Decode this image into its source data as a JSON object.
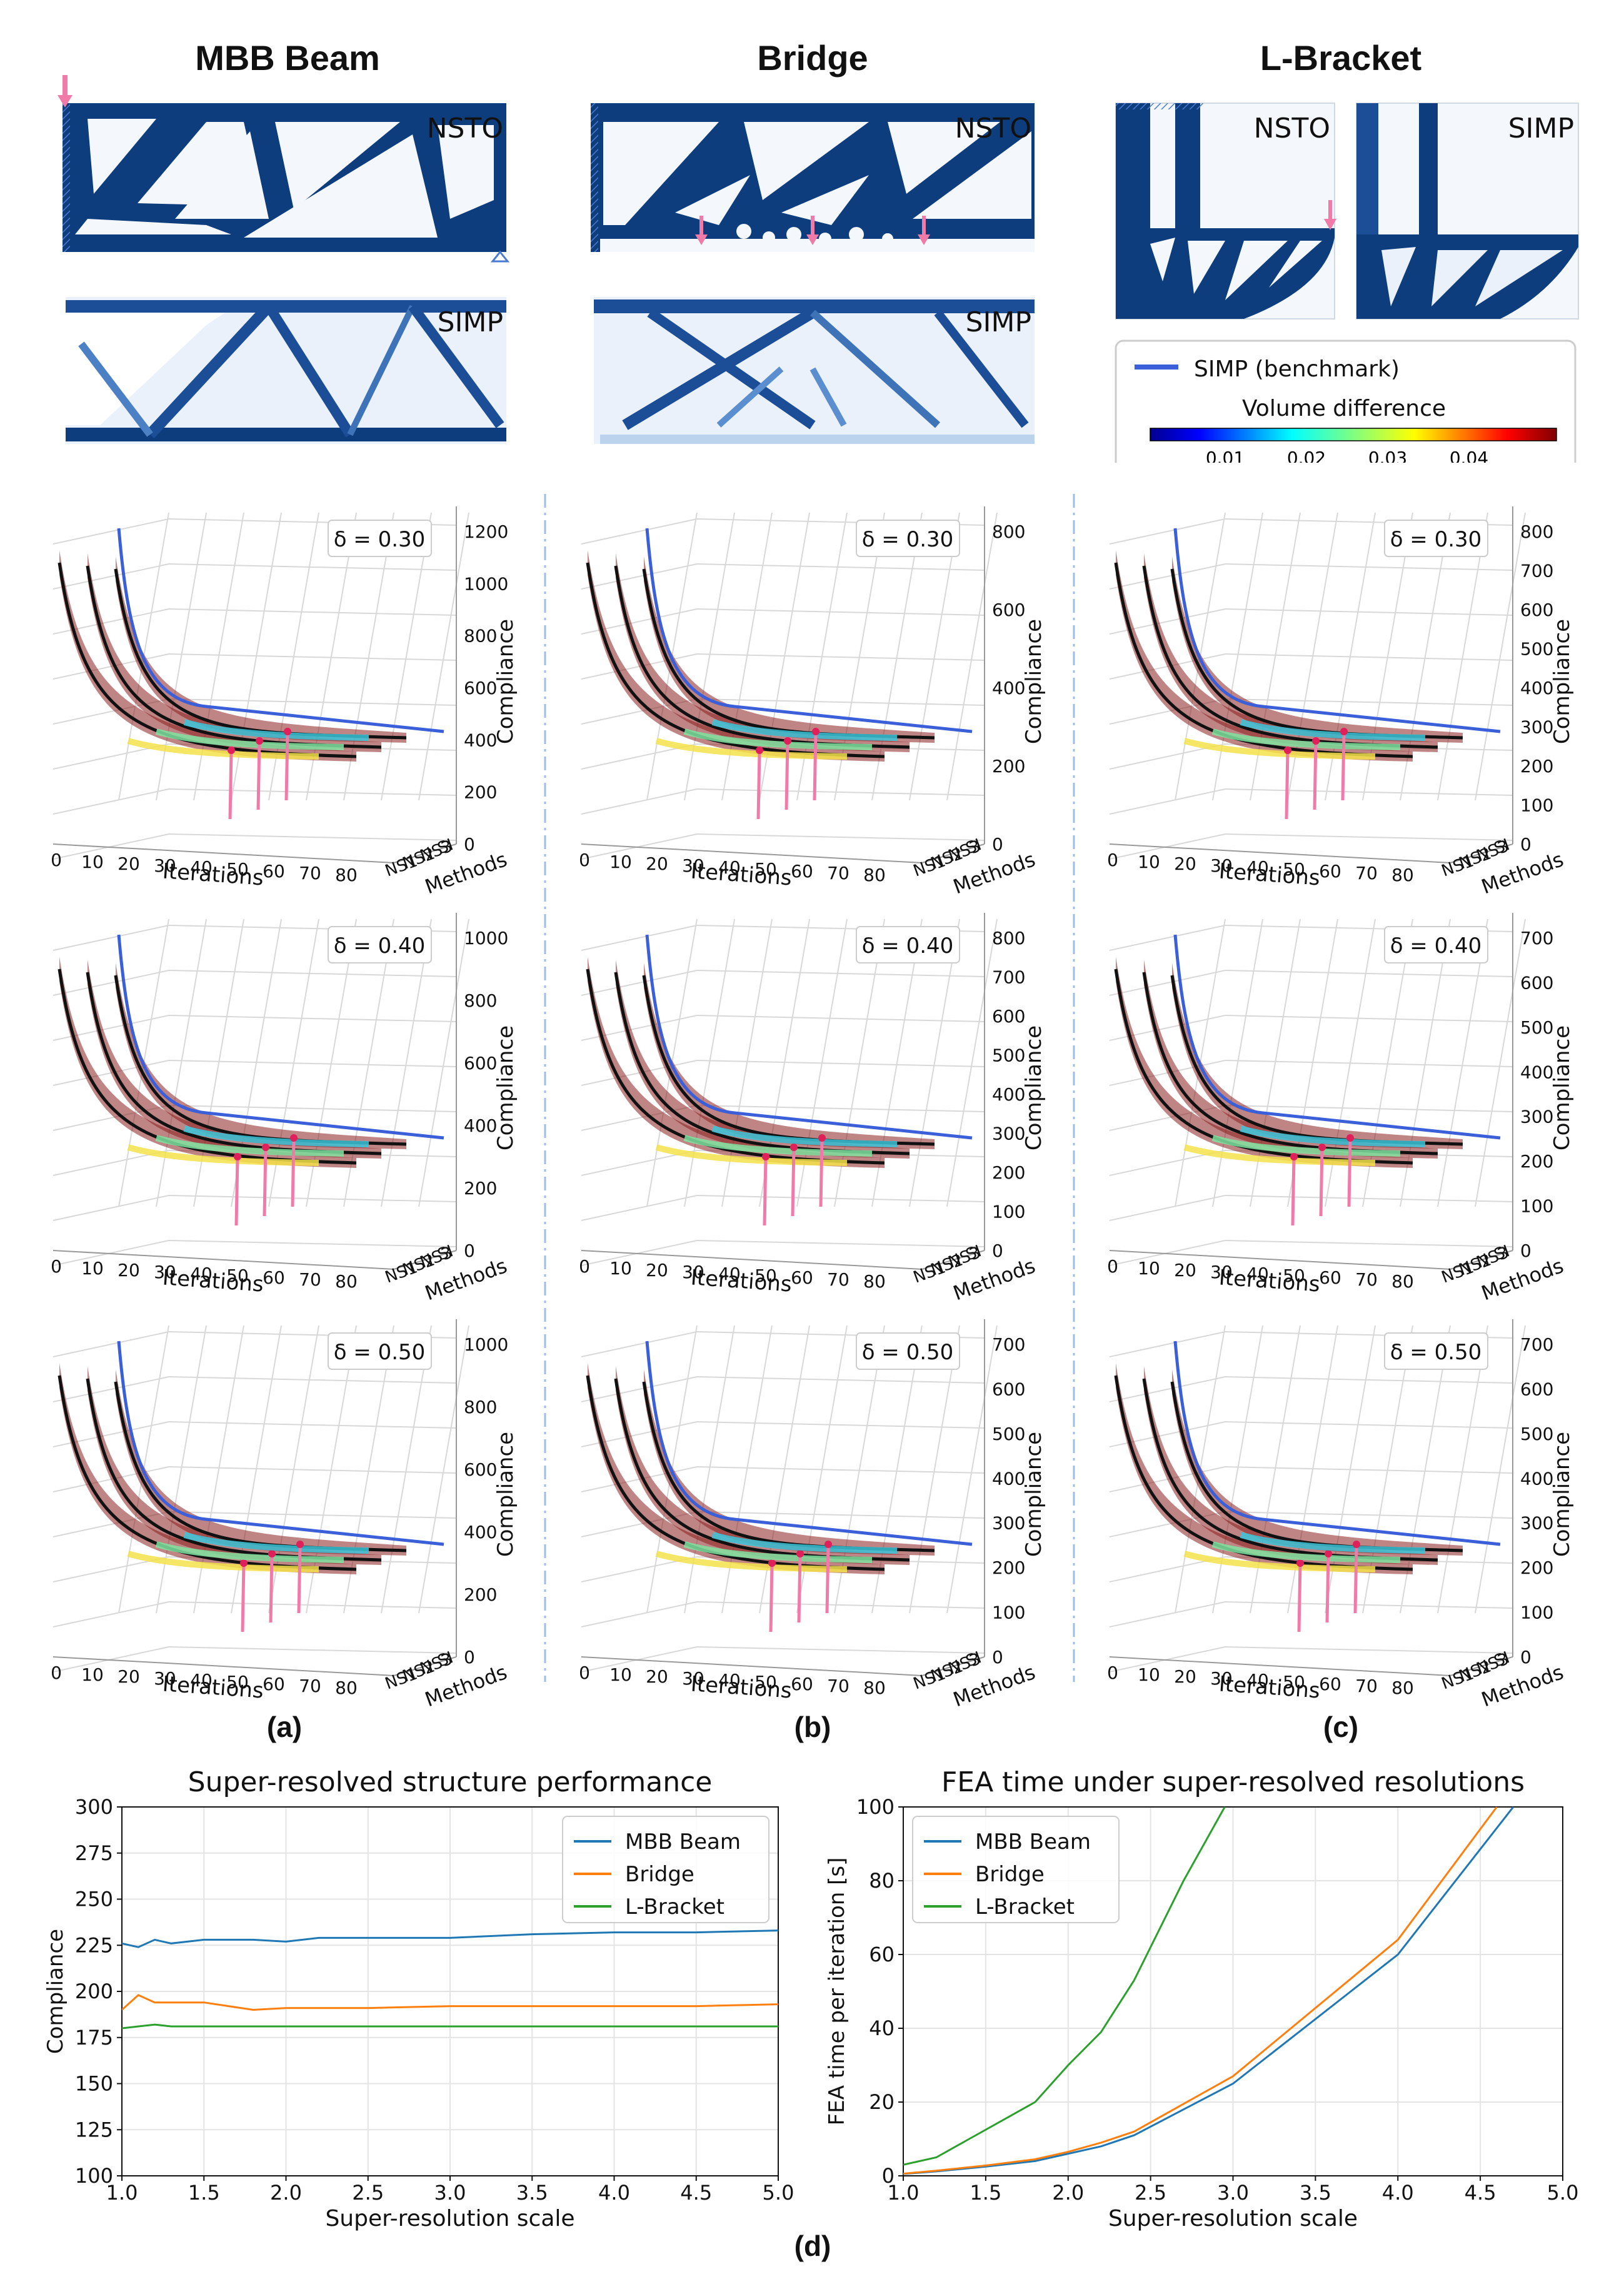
{
  "columns": [
    {
      "title": "MBB Beam",
      "panel_label": "(a)"
    },
    {
      "title": "Bridge",
      "panel_label": "(b)"
    },
    {
      "title": "L-Bracket",
      "panel_label": "(c)"
    }
  ],
  "structures": {
    "nsto": "NSTO",
    "simp": "SIMP"
  },
  "legend": {
    "line_label": "SIMP (benchmark)",
    "colorbar_title": "Volume difference",
    "colorbar_ticks": [
      "0.01",
      "0.02",
      "0.03",
      "0.04"
    ],
    "line_color": "#3a5fd8"
  },
  "plot3d_common": {
    "x_label": "Iterations",
    "x_ticks": [
      "0",
      "10",
      "20",
      "30",
      "40",
      "50",
      "60",
      "70",
      "80"
    ],
    "method_ticks": [
      "NS1",
      "NS2",
      "NS3",
      "SI"
    ],
    "methods_label": "Methods",
    "z_label": "Compliance"
  },
  "plot3d": [
    [
      {
        "delta": "δ = 0.30",
        "z_ticks": [
          "1200",
          "1000",
          "800",
          "600",
          "400",
          "200",
          "0"
        ]
      },
      {
        "delta": "δ = 0.40",
        "z_ticks": [
          "1000",
          "800",
          "600",
          "400",
          "200",
          "0"
        ]
      },
      {
        "delta": "δ = 0.50",
        "z_ticks": [
          "1000",
          "800",
          "600",
          "400",
          "200",
          "0"
        ]
      }
    ],
    [
      {
        "delta": "δ = 0.30",
        "z_ticks": [
          "800",
          "600",
          "400",
          "200",
          "0"
        ]
      },
      {
        "delta": "δ = 0.40",
        "z_ticks": [
          "800",
          "700",
          "600",
          "500",
          "400",
          "300",
          "200",
          "100",
          "0"
        ]
      },
      {
        "delta": "δ = 0.50",
        "z_ticks": [
          "700",
          "600",
          "500",
          "400",
          "300",
          "200",
          "100",
          "0"
        ]
      }
    ],
    [
      {
        "delta": "δ = 0.30",
        "z_ticks": [
          "800",
          "700",
          "600",
          "500",
          "400",
          "300",
          "200",
          "100",
          "0"
        ]
      },
      {
        "delta": "δ = 0.40",
        "z_ticks": [
          "700",
          "600",
          "500",
          "400",
          "300",
          "200",
          "100",
          "0"
        ]
      },
      {
        "delta": "δ = 0.50",
        "z_ticks": [
          "700",
          "600",
          "500",
          "400",
          "300",
          "200",
          "100",
          "0"
        ]
      }
    ]
  ],
  "bottom_label": "(d)",
  "chart_data": [
    {
      "type": "line",
      "title": "Super-resolved structure performance",
      "xlabel": "Super-resolution scale",
      "ylabel": "Compliance",
      "xlim": [
        1.0,
        5.0
      ],
      "ylim": [
        100,
        300
      ],
      "x_ticks": [
        "1.0",
        "1.5",
        "2.0",
        "2.5",
        "3.0",
        "3.5",
        "4.0",
        "4.5",
        "5.0"
      ],
      "y_ticks": [
        "100",
        "125",
        "150",
        "175",
        "200",
        "225",
        "250",
        "275",
        "300"
      ],
      "grid": true,
      "legend_position": "top-right",
      "series": [
        {
          "name": "MBB Beam",
          "color": "#1f77b4",
          "x": [
            1.0,
            1.1,
            1.2,
            1.3,
            1.5,
            1.8,
            2.0,
            2.2,
            2.5,
            3.0,
            3.5,
            4.0,
            4.5,
            5.0
          ],
          "y": [
            226,
            224,
            228,
            226,
            228,
            228,
            227,
            229,
            229,
            229,
            231,
            232,
            232,
            233
          ]
        },
        {
          "name": "Bridge",
          "color": "#ff7f0e",
          "x": [
            1.0,
            1.1,
            1.2,
            1.3,
            1.5,
            1.8,
            2.0,
            2.2,
            2.5,
            3.0,
            3.5,
            4.0,
            4.5,
            5.0
          ],
          "y": [
            190,
            198,
            194,
            194,
            194,
            190,
            191,
            191,
            191,
            192,
            192,
            192,
            192,
            193
          ]
        },
        {
          "name": "L-Bracket",
          "color": "#2ca02c",
          "x": [
            1.0,
            1.1,
            1.2,
            1.3,
            1.5,
            1.8,
            2.0,
            2.2,
            2.5,
            3.0,
            3.5,
            4.0,
            4.5,
            5.0
          ],
          "y": [
            180,
            181,
            182,
            181,
            181,
            181,
            181,
            181,
            181,
            181,
            181,
            181,
            181,
            181
          ]
        }
      ]
    },
    {
      "type": "line",
      "title": "FEA time under super-resolved resolutions",
      "xlabel": "Super-resolution scale",
      "ylabel": "FEA time per iteration [s]",
      "xlim": [
        1.0,
        5.0
      ],
      "ylim": [
        0,
        100
      ],
      "x_ticks": [
        "1.0",
        "1.5",
        "2.0",
        "2.5",
        "3.0",
        "3.5",
        "4.0",
        "4.5",
        "5.0"
      ],
      "y_ticks": [
        "0",
        "20",
        "40",
        "60",
        "80",
        "100"
      ],
      "grid": true,
      "legend_position": "top-left",
      "series": [
        {
          "name": "MBB Beam",
          "color": "#1f77b4",
          "x": [
            1.0,
            1.2,
            1.5,
            1.8,
            2.0,
            2.2,
            2.4,
            3.0,
            4.0,
            4.7
          ],
          "y": [
            0.5,
            1.2,
            2.5,
            4,
            6,
            8,
            11,
            25,
            60,
            100
          ]
        },
        {
          "name": "Bridge",
          "color": "#ff7f0e",
          "x": [
            1.0,
            1.2,
            1.5,
            1.8,
            2.0,
            2.2,
            2.4,
            3.0,
            4.0,
            4.6
          ],
          "y": [
            0.6,
            1.4,
            2.8,
            4.5,
            6.5,
            9,
            12,
            27,
            64,
            100
          ]
        },
        {
          "name": "L-Bracket",
          "color": "#2ca02c",
          "x": [
            1.0,
            1.2,
            1.4,
            1.8,
            2.0,
            2.2,
            2.4,
            2.7,
            2.95
          ],
          "y": [
            3,
            5,
            10,
            20,
            30,
            39,
            53,
            80,
            100
          ]
        }
      ]
    }
  ]
}
